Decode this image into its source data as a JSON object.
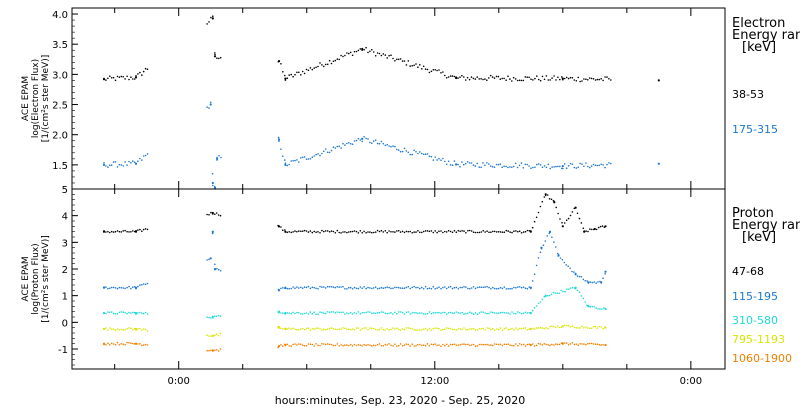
{
  "xlabel": "hours:minutes, Sep. 23, 2020 - Sep. 25, 2020",
  "x_ticks": [
    {
      "label": "0:00",
      "hour": 24
    },
    {
      "label": "12:00",
      "hour": 36
    },
    {
      "label": "0:00",
      "hour": 48
    }
  ],
  "chart_data": [
    {
      "type": "scatter",
      "name": "electron",
      "ylabel_lines": [
        "ACE EPAM",
        "log(Electron Flux)",
        "[1/(cm²s ster MeV)]"
      ],
      "ylim": [
        1.1,
        4.1
      ],
      "yticks": [
        1.5,
        2.0,
        2.5,
        3.0,
        3.5,
        4.0
      ],
      "xlim_hours": [
        19,
        49.6
      ],
      "legend_title_lines": [
        "Electron",
        "Energy ranges",
        "[keV]"
      ],
      "series": [
        {
          "name": "38-53",
          "color": "#000000",
          "points": [
            [
              20.5,
              2.92
            ],
            [
              22,
              2.95
            ],
            [
              25.6,
              3.93
            ],
            [
              25.7,
              3.3
            ],
            [
              28.7,
              3.22
            ],
            [
              29,
              2.93
            ],
            [
              32.6,
              3.42
            ],
            [
              37,
              2.94
            ],
            [
              42,
              2.93
            ],
            [
              46.5,
              2.9
            ]
          ]
        },
        {
          "name": "175-315",
          "color": "#1e78d0",
          "points": [
            [
              20.5,
              1.5
            ],
            [
              22,
              1.52
            ],
            [
              25.5,
              2.5
            ],
            [
              25.6,
              1.2
            ],
            [
              25.7,
              1.12
            ],
            [
              25.8,
              1.6
            ],
            [
              28.7,
              1.92
            ],
            [
              29,
              1.5
            ],
            [
              32.6,
              1.93
            ],
            [
              37,
              1.51
            ],
            [
              42,
              1.48
            ],
            [
              46.5,
              1.52
            ]
          ]
        }
      ]
    },
    {
      "type": "scatter",
      "name": "proton",
      "ylabel_lines": [
        "ACE EPAM",
        "log(Proton Flux)",
        "[1/(cm²s ster MeV)]"
      ],
      "ylim": [
        -1.75,
        5.0
      ],
      "yticks": [
        -1,
        0,
        1,
        2,
        3,
        4,
        5
      ],
      "xlim_hours": [
        19,
        49.6
      ],
      "legend_title_lines": [
        "Proton",
        "Energy ranges",
        "[keV]"
      ],
      "series": [
        {
          "name": "47-68",
          "color": "#000000",
          "points": [
            [
              20.5,
              3.4
            ],
            [
              22,
              3.4
            ],
            [
              25.6,
              4.1
            ],
            [
              28.7,
              3.6
            ],
            [
              29,
              3.4
            ],
            [
              40.5,
              3.4
            ],
            [
              41.2,
              4.8
            ],
            [
              41.6,
              4.5
            ],
            [
              42,
              3.6
            ],
            [
              42.6,
              4.3
            ],
            [
              43,
              3.4
            ],
            [
              43.5,
              3.5
            ],
            [
              44,
              3.6
            ]
          ]
        },
        {
          "name": "115-195",
          "color": "#1e78d0",
          "points": [
            [
              20.5,
              1.3
            ],
            [
              22,
              1.3
            ],
            [
              25.5,
              2.4
            ],
            [
              25.6,
              3.4
            ],
            [
              25.7,
              2.0
            ],
            [
              28.7,
              1.2
            ],
            [
              29,
              1.3
            ],
            [
              40.5,
              1.3
            ],
            [
              41,
              2.8
            ],
            [
              41.4,
              3.4
            ],
            [
              41.8,
              2.5
            ],
            [
              42.6,
              1.8
            ],
            [
              43.2,
              1.5
            ],
            [
              43.8,
              1.5
            ],
            [
              44,
              1.9
            ]
          ]
        },
        {
          "name": "310-580",
          "color": "#1fd8d8",
          "points": [
            [
              20.5,
              0.35
            ],
            [
              22,
              0.35
            ],
            [
              25.6,
              0.2
            ],
            [
              28.7,
              0.4
            ],
            [
              29,
              0.35
            ],
            [
              40.5,
              0.35
            ],
            [
              41.2,
              1.0
            ],
            [
              42.6,
              1.3
            ],
            [
              43.2,
              0.6
            ],
            [
              44,
              0.5
            ]
          ]
        },
        {
          "name": "795-1193",
          "color": "#d8e400",
          "points": [
            [
              20.5,
              -0.25
            ],
            [
              22,
              -0.25
            ],
            [
              25.6,
              -0.5
            ],
            [
              28.7,
              -0.2
            ],
            [
              29,
              -0.25
            ],
            [
              40.5,
              -0.25
            ],
            [
              42,
              -0.15
            ],
            [
              44,
              -0.2
            ]
          ]
        },
        {
          "name": "1060-1900",
          "color": "#f08000",
          "points": [
            [
              20.5,
              -0.8
            ],
            [
              22,
              -0.8
            ],
            [
              25.6,
              -1.05
            ],
            [
              28.7,
              -0.9
            ],
            [
              29,
              -0.85
            ],
            [
              40.5,
              -0.85
            ],
            [
              42,
              -0.8
            ],
            [
              44,
              -0.85
            ]
          ]
        }
      ]
    }
  ]
}
